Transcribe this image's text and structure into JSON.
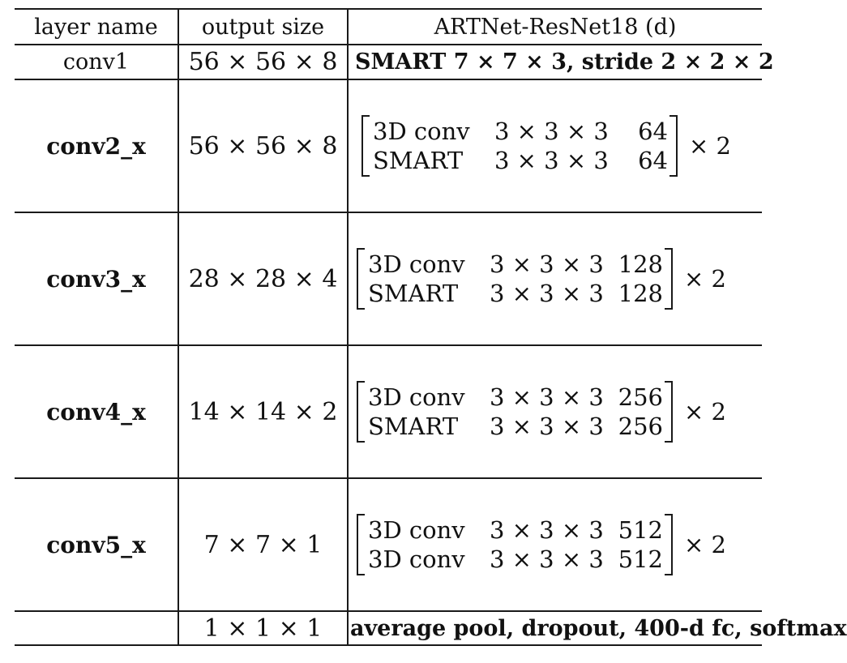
{
  "headers": {
    "layer_name": "layer name",
    "output_size": "output size",
    "arch": "ARTNet-ResNet18 (d)"
  },
  "rows": [
    {
      "layer": "conv1",
      "size": "56 × 56 × 8",
      "text": "SMART 7 × 7 × 3, stride 2 × 2 × 2"
    },
    {
      "layer": "conv2_x",
      "size": "56 × 56 × 8",
      "block": [
        {
          "op": "3D conv",
          "kernel": "3 × 3 × 3",
          "channels": "64"
        },
        {
          "op": "SMART",
          "kernel": "3 × 3 × 3",
          "channels": "64"
        }
      ],
      "repeat": "× 2"
    },
    {
      "layer": "conv3_x",
      "size": "28 × 28 × 4",
      "block": [
        {
          "op": "3D conv",
          "kernel": "3 × 3 × 3",
          "channels": "128"
        },
        {
          "op": "SMART",
          "kernel": "3 × 3 × 3",
          "channels": "128"
        }
      ],
      "repeat": "× 2"
    },
    {
      "layer": "conv4_x",
      "size": "14 × 14 × 2",
      "block": [
        {
          "op": "3D conv",
          "kernel": "3 × 3 × 3",
          "channels": "256"
        },
        {
          "op": "SMART",
          "kernel": "3 × 3 × 3",
          "channels": "256"
        }
      ],
      "repeat": "× 2"
    },
    {
      "layer": "conv5_x",
      "size": "7 × 7 × 1",
      "block": [
        {
          "op": "3D conv",
          "kernel": "3 × 3 × 3",
          "channels": "512"
        },
        {
          "op": "3D conv",
          "kernel": "3 × 3 × 3",
          "channels": "512"
        }
      ],
      "repeat": "× 2"
    },
    {
      "layer": "",
      "size": "1 × 1 × 1",
      "text": "average pool, dropout, 400-d fc, softmax"
    }
  ]
}
